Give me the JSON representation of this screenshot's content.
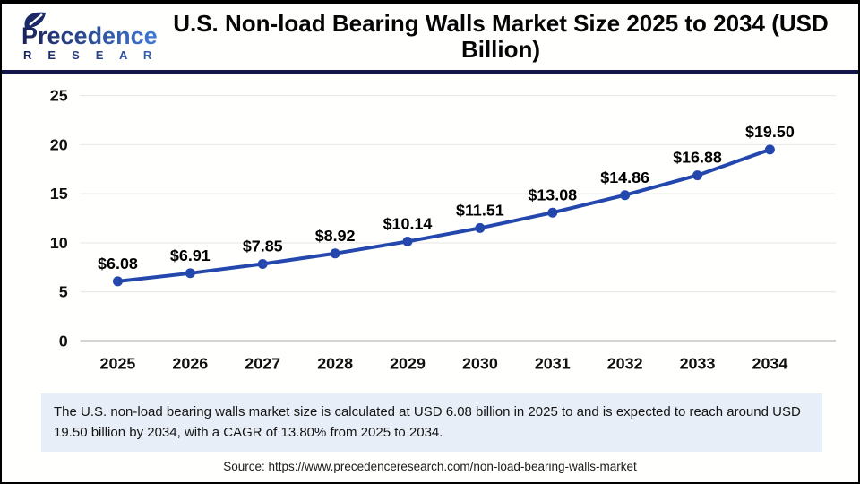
{
  "header": {
    "logo": {
      "name": "Precedence",
      "tagline": "R E S E A R C H"
    },
    "title": "U.S. Non-load Bearing Walls Market Size 2025 to 2034 (USD Billion)"
  },
  "chart_data": {
    "type": "line",
    "title": "U.S. Non-load Bearing Walls Market Size 2025 to 2034 (USD Billion)",
    "categories": [
      "2025",
      "2026",
      "2027",
      "2028",
      "2029",
      "2030",
      "2031",
      "2032",
      "2033",
      "2034"
    ],
    "values": [
      6.08,
      6.91,
      7.85,
      8.92,
      10.14,
      11.51,
      13.08,
      14.86,
      16.88,
      19.5
    ],
    "point_labels": [
      "$6.08",
      "$6.91",
      "$7.85",
      "$8.92",
      "$10.14",
      "$11.51",
      "$13.08",
      "$14.86",
      "$16.88",
      "$19.50"
    ],
    "xlabel": "",
    "ylabel": "",
    "yticks": [
      0,
      5,
      10,
      15,
      20,
      25
    ],
    "ylim": [
      0,
      25
    ],
    "grid": true,
    "legend": "none",
    "line_color": "#2347ad",
    "marker": "circle"
  },
  "footer": {
    "description": "The U.S. non-load bearing walls market size is calculated at USD 6.08 billion in 2025 to and is expected to reach around USD 19.50 billion by 2034, with a CAGR of 13.80% from 2025 to 2034.",
    "source": "Source: https://www.precedenceresearch.com/non-load-bearing-walls-market"
  }
}
